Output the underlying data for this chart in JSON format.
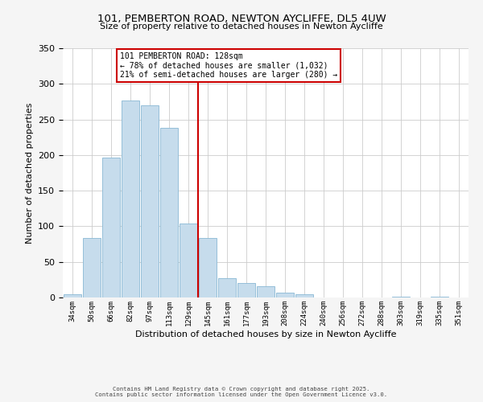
{
  "title": "101, PEMBERTON ROAD, NEWTON AYCLIFFE, DL5 4UW",
  "subtitle": "Size of property relative to detached houses in Newton Aycliffe",
  "xlabel": "Distribution of detached houses by size in Newton Aycliffe",
  "ylabel": "Number of detached properties",
  "bar_labels": [
    "34sqm",
    "50sqm",
    "66sqm",
    "82sqm",
    "97sqm",
    "113sqm",
    "129sqm",
    "145sqm",
    "161sqm",
    "177sqm",
    "193sqm",
    "208sqm",
    "224sqm",
    "240sqm",
    "256sqm",
    "272sqm",
    "288sqm",
    "303sqm",
    "319sqm",
    "335sqm",
    "351sqm"
  ],
  "bar_values": [
    5,
    83,
    196,
    277,
    270,
    238,
    104,
    83,
    27,
    20,
    16,
    7,
    5,
    0,
    0,
    0,
    0,
    1,
    0,
    1,
    0
  ],
  "bar_color": "#c6dcec",
  "bar_edgecolor": "#89b8d4",
  "vline_x": 6.5,
  "vline_color": "#cc0000",
  "ylim": [
    0,
    350
  ],
  "yticks": [
    0,
    50,
    100,
    150,
    200,
    250,
    300,
    350
  ],
  "annotation_title": "101 PEMBERTON ROAD: 128sqm",
  "annotation_line1": "← 78% of detached houses are smaller (1,032)",
  "annotation_line2": "21% of semi-detached houses are larger (280) →",
  "footer1": "Contains HM Land Registry data © Crown copyright and database right 2025.",
  "footer2": "Contains public sector information licensed under the Open Government Licence v3.0.",
  "background_color": "#f5f5f5",
  "plot_bg_color": "#ffffff"
}
